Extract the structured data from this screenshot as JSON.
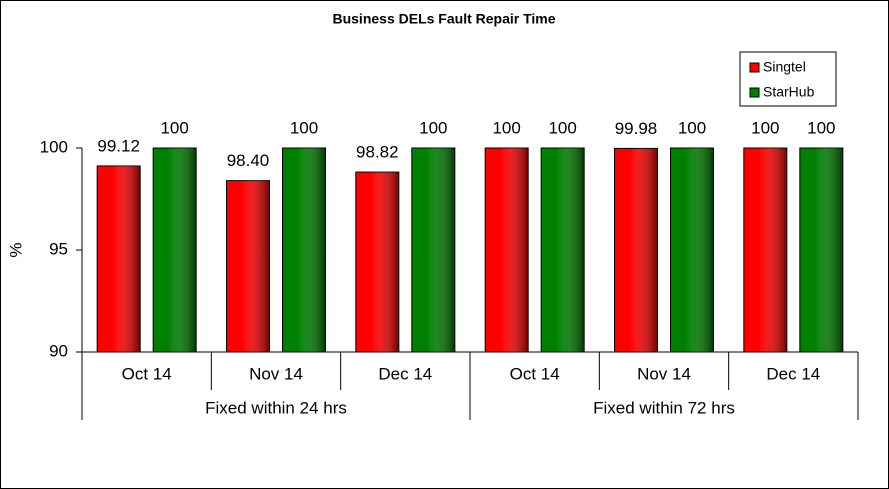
{
  "chart_data": {
    "type": "bar",
    "title": "Business DELs Fault Repair Time",
    "y_label": "%",
    "groups": [
      {
        "name": "Fixed within 24 hrs",
        "categories": [
          "Oct 14",
          "Nov 14",
          "Dec 14"
        ]
      },
      {
        "name": "Fixed within 72 hrs",
        "categories": [
          "Oct 14",
          "Nov 14",
          "Dec 14"
        ]
      }
    ],
    "series": [
      {
        "name": "Singtel",
        "color": "#ff0000",
        "values": [
          99.12,
          98.4,
          98.82,
          100,
          99.98,
          100
        ],
        "value_labels": [
          "99.12",
          "98.40",
          "98.82",
          "100",
          "99.98",
          "100"
        ]
      },
      {
        "name": "StarHub",
        "color": "#008000",
        "values": [
          100,
          100,
          100,
          100,
          100,
          100
        ],
        "value_labels": [
          "100",
          "100",
          "100",
          "100",
          "100",
          "100"
        ]
      }
    ],
    "ylim": [
      90,
      100
    ],
    "yticks": [
      90,
      95,
      100
    ],
    "legend": "upper right"
  }
}
